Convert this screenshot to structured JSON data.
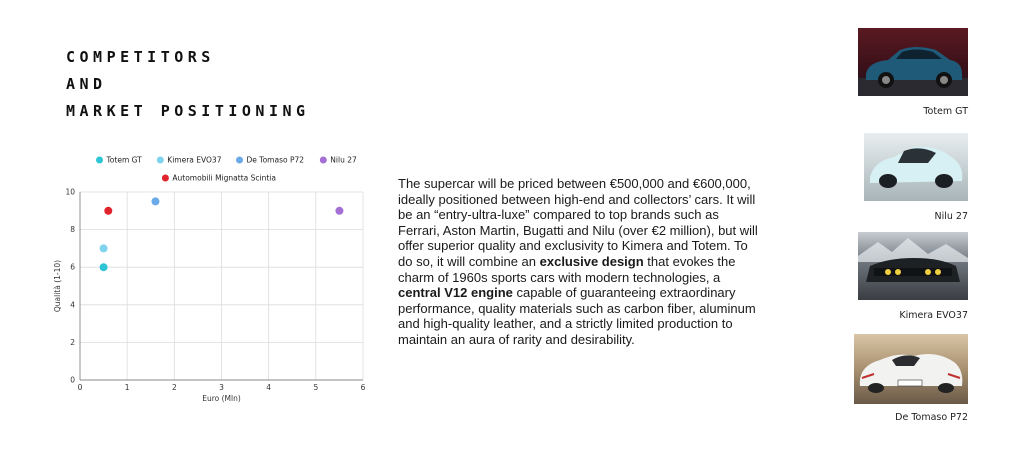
{
  "heading": {
    "line1": "COMPETITORS",
    "line2": "AND",
    "line3": "MARKET POSITIONING"
  },
  "description": {
    "part1": "The supercar will be priced between €500,000 and €600,000, ideally positioned between high-end and collectors’ cars. It will be an “entry-ultra-luxe” compared to top brands such as Ferrari, Aston Martin, Bugatti and Nilu (over €2 million), but will offer superior quality and exclusivity to Kimera and Totem. To do so, it will combine an ",
    "bold1": "exclusive design",
    "part2": " that evokes the charm of 1960s sports cars with modern technologies, a ",
    "bold2": "central V12 engine",
    "part3": " capable of guaranteeing extraordinary performance, quality materials such as carbon fiber, aluminum and high-quality leather, and a strictly limited production to maintain an aura of rarity and desirability."
  },
  "gallery": [
    {
      "caption": "Totem GT"
    },
    {
      "caption": "Nilu 27"
    },
    {
      "caption": "Kimera EVO37"
    },
    {
      "caption": "De Tomaso P72"
    }
  ],
  "chart_data": {
    "type": "scatter",
    "xlabel": "Euro (Mln)",
    "ylabel": "Qualità (1-10)",
    "xlim": [
      0,
      6
    ],
    "ylim": [
      0,
      10
    ],
    "xticks": [
      0,
      1,
      2,
      3,
      4,
      5,
      6
    ],
    "yticks": [
      0,
      2,
      4,
      6,
      8,
      10
    ],
    "grid": true,
    "legend_position": "top",
    "series": [
      {
        "name": "Totem GT",
        "color": "#2ec4d6",
        "points": [
          {
            "x": 0.5,
            "y": 6
          }
        ]
      },
      {
        "name": "Kimera EVO37",
        "color": "#7fd3ee",
        "points": [
          {
            "x": 0.5,
            "y": 7
          }
        ]
      },
      {
        "name": "De Tomaso P72",
        "color": "#6aaae8",
        "points": [
          {
            "x": 1.6,
            "y": 9.5
          }
        ]
      },
      {
        "name": "Nilu 27",
        "color": "#a46fd4",
        "points": [
          {
            "x": 5.5,
            "y": 9
          }
        ]
      },
      {
        "name": "Automobili Mignatta Scintia",
        "color": "#e0242b",
        "points": [
          {
            "x": 0.6,
            "y": 9
          }
        ]
      }
    ]
  }
}
